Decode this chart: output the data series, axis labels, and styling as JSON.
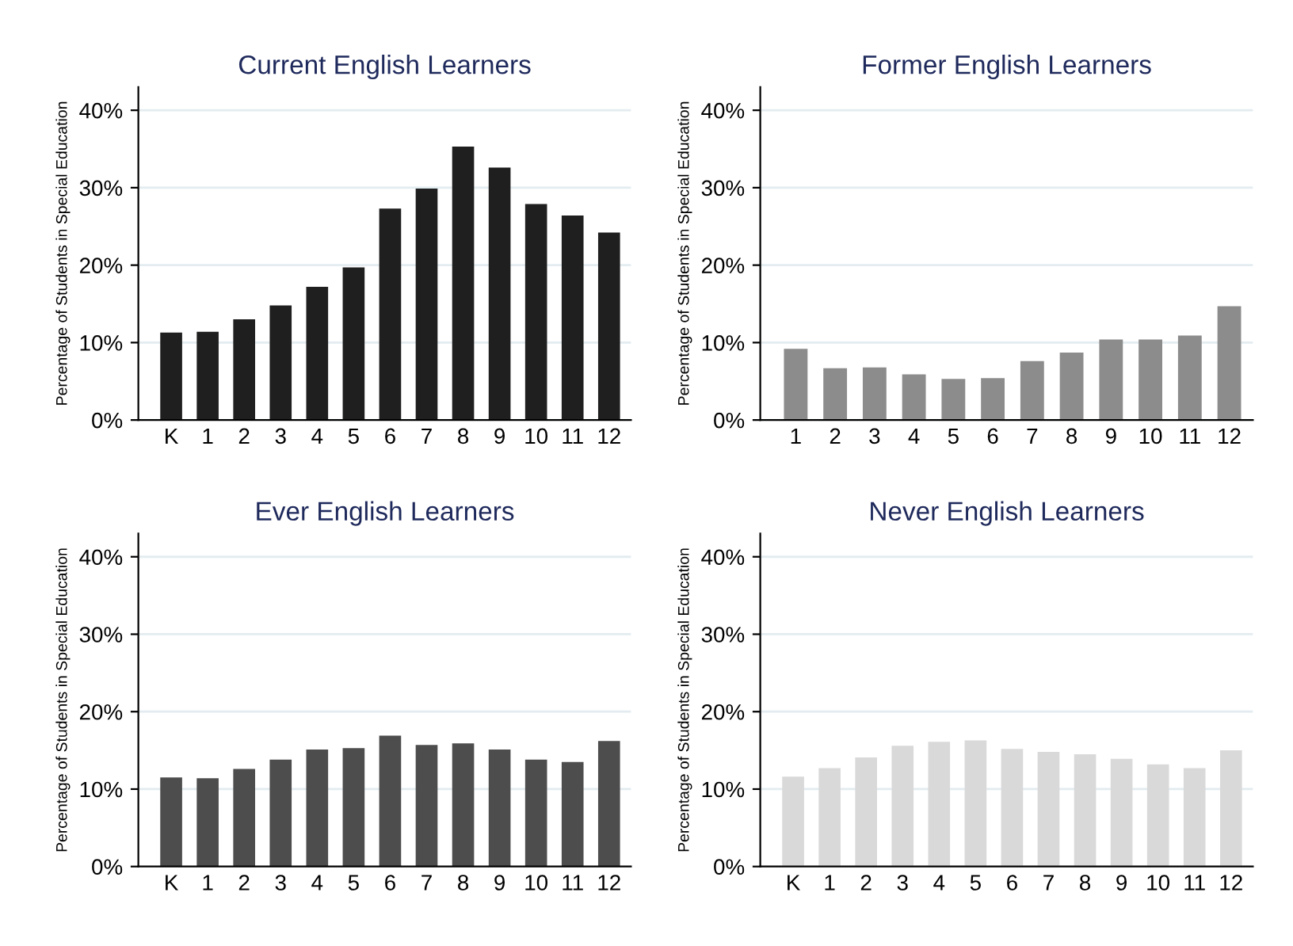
{
  "chart_data": [
    {
      "type": "bar",
      "title": "Current English Learners",
      "ylabel": "Percentage of Students in Special Education",
      "categories": [
        "K",
        "1",
        "2",
        "3",
        "4",
        "5",
        "6",
        "7",
        "8",
        "9",
        "10",
        "11",
        "12"
      ],
      "values": [
        11.3,
        11.4,
        13.0,
        14.8,
        17.2,
        19.7,
        27.3,
        29.9,
        35.3,
        32.6,
        27.9,
        26.4,
        24.2
      ],
      "color": "#1f1f1f",
      "ylim": [
        0,
        43
      ],
      "yticks": [
        {
          "value": 0,
          "label": "0%"
        },
        {
          "value": 10,
          "label": "10%"
        },
        {
          "value": 20,
          "label": "20%"
        },
        {
          "value": 30,
          "label": "30%"
        },
        {
          "value": 40,
          "label": "40%"
        }
      ],
      "grid": "y"
    },
    {
      "type": "bar",
      "title": "Former English Learners",
      "ylabel": "Percentage of Students in Special Education",
      "categories": [
        "1",
        "2",
        "3",
        "4",
        "5",
        "6",
        "7",
        "8",
        "9",
        "10",
        "11",
        "12"
      ],
      "values": [
        9.2,
        6.7,
        6.8,
        5.9,
        5.3,
        5.4,
        7.6,
        8.7,
        10.4,
        10.4,
        10.9,
        14.7
      ],
      "color": "#8c8c8c",
      "ylim": [
        0,
        43
      ],
      "yticks": [
        {
          "value": 0,
          "label": "0%"
        },
        {
          "value": 10,
          "label": "10%"
        },
        {
          "value": 20,
          "label": "20%"
        },
        {
          "value": 30,
          "label": "30%"
        },
        {
          "value": 40,
          "label": "40%"
        }
      ],
      "grid": "y"
    },
    {
      "type": "bar",
      "title": "Ever English Learners",
      "ylabel": "Percentage of Students in Special Education",
      "categories": [
        "K",
        "1",
        "2",
        "3",
        "4",
        "5",
        "6",
        "7",
        "8",
        "9",
        "10",
        "11",
        "12"
      ],
      "values": [
        11.5,
        11.4,
        12.6,
        13.8,
        15.1,
        15.3,
        16.9,
        15.7,
        15.9,
        15.1,
        13.8,
        13.5,
        16.2
      ],
      "color": "#4d4d4d",
      "ylim": [
        0,
        43
      ],
      "yticks": [
        {
          "value": 0,
          "label": "0%"
        },
        {
          "value": 10,
          "label": "10%"
        },
        {
          "value": 20,
          "label": "20%"
        },
        {
          "value": 30,
          "label": "30%"
        },
        {
          "value": 40,
          "label": "40%"
        }
      ],
      "grid": "y"
    },
    {
      "type": "bar",
      "title": "Never English Learners",
      "ylabel": "Percentage of Students in Special Education",
      "categories": [
        "K",
        "1",
        "2",
        "3",
        "4",
        "5",
        "6",
        "7",
        "8",
        "9",
        "10",
        "11",
        "12"
      ],
      "values": [
        11.6,
        12.7,
        14.1,
        15.6,
        16.1,
        16.3,
        15.2,
        14.8,
        14.5,
        13.9,
        13.2,
        12.7,
        15.0
      ],
      "color": "#d9d9d9",
      "ylim": [
        0,
        43
      ],
      "yticks": [
        {
          "value": 0,
          "label": "0%"
        },
        {
          "value": 10,
          "label": "10%"
        },
        {
          "value": 20,
          "label": "20%"
        },
        {
          "value": 30,
          "label": "30%"
        },
        {
          "value": 40,
          "label": "40%"
        }
      ],
      "grid": "y"
    }
  ]
}
